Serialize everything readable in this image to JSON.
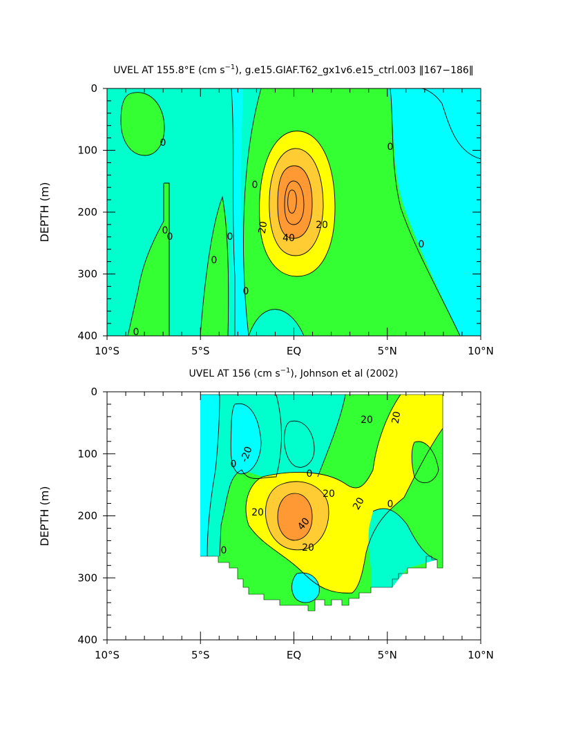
{
  "colors": {
    "cyan": "#00ffff",
    "aqua": "#00ffcc",
    "green": "#33ff33",
    "yellow": "#ffff00",
    "orange_light": "#ffcc33",
    "orange": "#ff9933",
    "line": "#000000",
    "background": "#ffffff"
  },
  "chart_data": [
    {
      "type": "contour",
      "title": "UVEL AT 155.8°E (cm s⁻¹), g.e15.GIAF.T62_gx1v6.e15_ctrl.003 ‖167−186‖",
      "title_parts": {
        "a": "UVEL AT 155.8°E (cm s",
        "sup": "−1",
        "b": "), g.e15.GIAF.T62_gx1v6.e15_ctrl.003 ‖167−186‖"
      },
      "xlabel": "",
      "ylabel": "DEPTH (m)",
      "xlim": [
        -10,
        10
      ],
      "ylim": [
        0,
        400
      ],
      "y_inverted": true,
      "x_ticks": [
        -10,
        -5,
        0,
        5,
        10
      ],
      "x_tick_labels": [
        "10°S",
        "5°S",
        "EQ",
        "5°N",
        "10°N"
      ],
      "y_ticks": [
        0,
        100,
        200,
        300,
        400
      ],
      "y_tick_labels": [
        "0",
        "100",
        "200",
        "300",
        "400"
      ],
      "contour_labels": [
        "0",
        "0",
        "0",
        "0",
        "0",
        "0",
        "0",
        "0",
        "0",
        "20",
        "20",
        "40"
      ],
      "contour_interval": 10,
      "core": {
        "lat": 0,
        "depth": 175,
        "max": 50
      }
    },
    {
      "type": "contour",
      "title": "UVEL AT 156 (cm s⁻¹), Johnson et al (2002)",
      "title_parts": {
        "a": "UVEL AT 156 (cm s",
        "sup": "−1",
        "b": "), Johnson et al (2002)"
      },
      "xlabel": "",
      "ylabel": "DEPTH (m)",
      "xlim": [
        -10,
        10
      ],
      "ylim": [
        0,
        400
      ],
      "y_inverted": true,
      "x_ticks": [
        -10,
        -5,
        0,
        5,
        10
      ],
      "x_tick_labels": [
        "10°S",
        "5°S",
        "EQ",
        "5°N",
        "10°N"
      ],
      "y_ticks": [
        0,
        100,
        200,
        300,
        400
      ],
      "y_tick_labels": [
        "0",
        "100",
        "200",
        "300",
        "400"
      ],
      "data_extent_lat": [
        -5,
        8
      ],
      "contour_labels": [
        "0",
        "0",
        "0",
        "0",
        "-20",
        "20",
        "20",
        "20",
        "20",
        "20",
        "20",
        "40"
      ],
      "contour_interval": 10,
      "core": {
        "lat": -0.3,
        "depth": 200,
        "max": 50
      }
    }
  ]
}
